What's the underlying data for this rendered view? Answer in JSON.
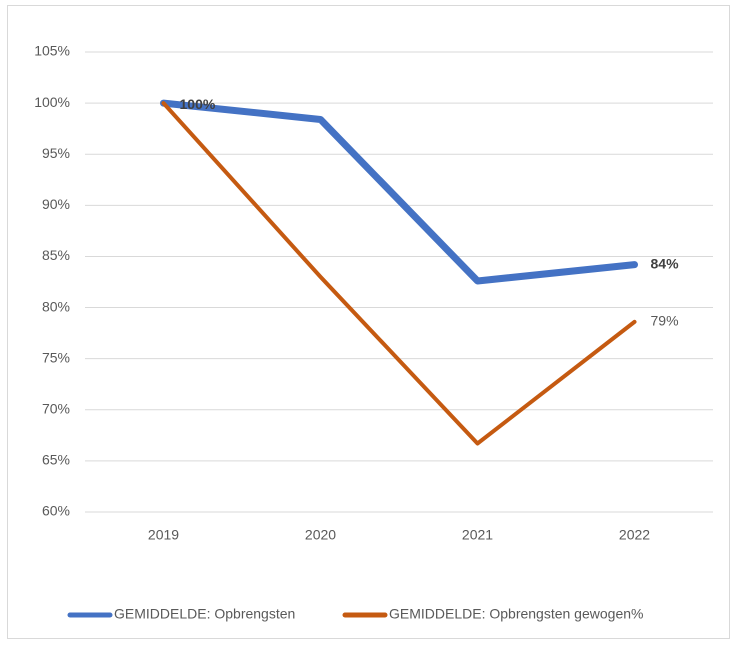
{
  "chart_data": {
    "type": "line",
    "categories": [
      "2019",
      "2020",
      "2021",
      "2022"
    ],
    "series": [
      {
        "name": "GEMIDDELDE: Opbrengsten",
        "color": "#4472c4",
        "values": [
          100,
          98.4,
          82.6,
          84.2
        ],
        "value_labels": [
          "100%",
          null,
          null,
          "84%"
        ]
      },
      {
        "name": "GEMIDDELDE: Opbrengsten gewogen%",
        "color": "#c55a11",
        "values": [
          100,
          83,
          66.7,
          78.6
        ],
        "value_labels": [
          null,
          null,
          null,
          "79%"
        ]
      }
    ],
    "ylim": [
      60,
      105
    ],
    "yticks": [
      {
        "value": 60,
        "label": "60%"
      },
      {
        "value": 65,
        "label": "65%"
      },
      {
        "value": 70,
        "label": "70%"
      },
      {
        "value": 75,
        "label": "75%"
      },
      {
        "value": 80,
        "label": "80%"
      },
      {
        "value": 85,
        "label": "85%"
      },
      {
        "value": 90,
        "label": "90%"
      },
      {
        "value": 95,
        "label": "95%"
      },
      {
        "value": 100,
        "label": "100%"
      },
      {
        "value": 105,
        "label": "105%"
      }
    ],
    "grid": true,
    "legend": "bottom"
  }
}
